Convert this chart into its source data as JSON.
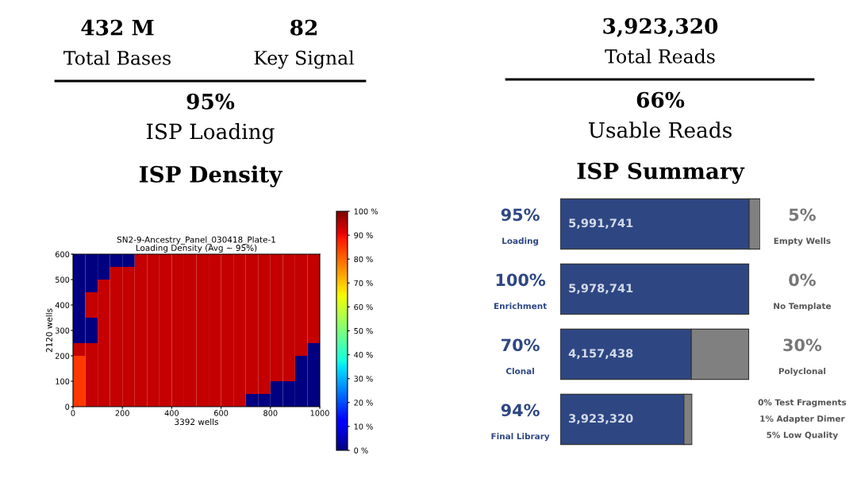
{
  "chart_data": [
    {
      "type": "other",
      "title": "ISP Density",
      "annotations": [
        "432 M",
        "Total Bases",
        "82",
        "Key Signal",
        "95%",
        "ISP Loading"
      ]
    },
    {
      "type": "heatmap",
      "title": "SN2-9-Ancestry_Panel_030418_Plate-1\nLoading Density (Avg ~ 95%)",
      "xlabel": "3392 wells",
      "ylabel": "2120 wells",
      "xlim": [
        0,
        1000
      ],
      "ylim": [
        0,
        600
      ],
      "xticks": [
        0,
        200,
        400,
        600,
        800,
        1000
      ],
      "yticks": [
        0,
        100,
        200,
        300,
        400,
        500,
        600
      ],
      "clim": [
        0,
        100
      ],
      "cticks": [
        {
          "value": 0,
          "label": "0 %"
        },
        {
          "value": 10,
          "label": "10 %"
        },
        {
          "value": 20,
          "label": "20 %"
        },
        {
          "value": 30,
          "label": "30 %"
        },
        {
          "value": 40,
          "label": "40 %"
        },
        {
          "value": 50,
          "label": "50 %"
        },
        {
          "value": 60,
          "label": "60 %"
        },
        {
          "value": 70,
          "label": "70 %"
        },
        {
          "value": 80,
          "label": "80 %"
        },
        {
          "value": 90,
          "label": "90 %"
        },
        {
          "value": 100,
          "label": "100 %"
        }
      ],
      "cells": [
        [
          0,
          0,
          0,
          0,
          0,
          94,
          94,
          94,
          94,
          94,
          94,
          94,
          94,
          94,
          94,
          94,
          94,
          94,
          94,
          94
        ],
        [
          0,
          0,
          0,
          94,
          94,
          94,
          94,
          94,
          94,
          94,
          94,
          94,
          94,
          94,
          94,
          94,
          94,
          94,
          94,
          94
        ],
        [
          0,
          0,
          94,
          94,
          94,
          94,
          94,
          94,
          94,
          94,
          94,
          94,
          94,
          94,
          94,
          94,
          94,
          94,
          94,
          94
        ],
        [
          0,
          94,
          94,
          94,
          94,
          94,
          94,
          94,
          94,
          94,
          94,
          94,
          94,
          94,
          94,
          94,
          94,
          94,
          94,
          94
        ],
        [
          0,
          94,
          94,
          94,
          94,
          94,
          94,
          94,
          94,
          94,
          94,
          94,
          94,
          94,
          94,
          94,
          94,
          94,
          94,
          94
        ],
        [
          0,
          0,
          94,
          94,
          94,
          94,
          94,
          94,
          94,
          94,
          94,
          94,
          94,
          94,
          94,
          94,
          94,
          94,
          94,
          94
        ],
        [
          0,
          0,
          94,
          94,
          94,
          94,
          94,
          94,
          94,
          94,
          94,
          94,
          94,
          94,
          94,
          94,
          94,
          94,
          94,
          94
        ],
        [
          94,
          94,
          94,
          94,
          94,
          94,
          94,
          94,
          94,
          94,
          94,
          94,
          94,
          94,
          94,
          94,
          94,
          94,
          94,
          0
        ],
        [
          85,
          94,
          94,
          94,
          94,
          94,
          94,
          94,
          94,
          94,
          94,
          94,
          94,
          94,
          94,
          94,
          94,
          94,
          0,
          0
        ],
        [
          85,
          94,
          94,
          94,
          94,
          94,
          94,
          94,
          94,
          94,
          94,
          94,
          94,
          94,
          94,
          94,
          94,
          94,
          0,
          0
        ],
        [
          85,
          94,
          94,
          94,
          94,
          94,
          94,
          94,
          94,
          94,
          94,
          94,
          94,
          94,
          94,
          94,
          0,
          0,
          0,
          0
        ],
        [
          85,
          94,
          94,
          94,
          94,
          94,
          94,
          94,
          94,
          94,
          94,
          94,
          94,
          94,
          0,
          0,
          0,
          0,
          0,
          0
        ]
      ]
    },
    {
      "type": "other",
      "title": "ISP Summary",
      "annotations": [
        "3,923,320",
        "Total Reads",
        "66%",
        "Usable Reads"
      ]
    },
    {
      "type": "bar",
      "orientation": "horizontal",
      "stacked": true,
      "categories": [
        "Loading",
        "Enrichment",
        "Clonal",
        "Final Library"
      ],
      "series": [
        {
          "color": "#2e4783",
          "values": [
            5991741,
            5978741,
            4157438,
            3923320
          ],
          "value_labels": [
            "5,991,741",
            "5,978,741",
            "4,157,438",
            "3,923,320"
          ]
        },
        {
          "color": "#808080",
          "values": [
            350000,
            0,
            1820000,
            250000
          ]
        }
      ],
      "annotations": [
        "95%",
        "100%",
        "70%",
        "94%",
        "5%",
        "Empty Wells",
        "0%",
        "No Template",
        "30%",
        "Polyclonal",
        "0% Test Fragments",
        "1% Adapter Dimer",
        "5% Low Quality"
      ]
    }
  ]
}
